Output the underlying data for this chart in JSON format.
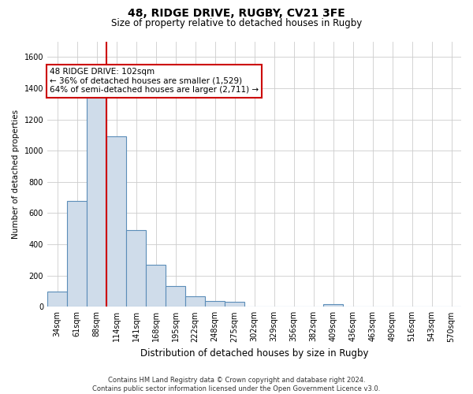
{
  "title1": "48, RIDGE DRIVE, RUGBY, CV21 3FE",
  "title2": "Size of property relative to detached houses in Rugby",
  "xlabel": "Distribution of detached houses by size in Rugby",
  "ylabel": "Number of detached properties",
  "categories": [
    "34sqm",
    "61sqm",
    "88sqm",
    "114sqm",
    "141sqm",
    "168sqm",
    "195sqm",
    "222sqm",
    "248sqm",
    "275sqm",
    "302sqm",
    "329sqm",
    "356sqm",
    "382sqm",
    "409sqm",
    "436sqm",
    "463sqm",
    "490sqm",
    "516sqm",
    "543sqm",
    "570sqm"
  ],
  "values": [
    95,
    680,
    1340,
    1090,
    490,
    270,
    135,
    68,
    35,
    30,
    0,
    0,
    0,
    0,
    18,
    0,
    0,
    0,
    0,
    0,
    0
  ],
  "bar_color": "#cfdcea",
  "bar_edge_color": "#5b8db8",
  "vline_color": "#cc0000",
  "annotation_line1": "48 RIDGE DRIVE: 102sqm",
  "annotation_line2": "← 36% of detached houses are smaller (1,529)",
  "annotation_line3": "64% of semi-detached houses are larger (2,711) →",
  "annotation_box_color": "#ffffff",
  "annotation_box_edge": "#cc0000",
  "ylim": [
    0,
    1700
  ],
  "yticks": [
    0,
    200,
    400,
    600,
    800,
    1000,
    1200,
    1400,
    1600
  ],
  "footer": "Contains HM Land Registry data © Crown copyright and database right 2024.\nContains public sector information licensed under the Open Government Licence v3.0.",
  "bg_color": "#ffffff",
  "grid_color": "#cccccc",
  "title1_fontsize": 10,
  "title2_fontsize": 8.5,
  "ylabel_fontsize": 7.5,
  "xlabel_fontsize": 8.5,
  "tick_fontsize": 7,
  "annotation_fontsize": 7.5,
  "footer_fontsize": 6
}
